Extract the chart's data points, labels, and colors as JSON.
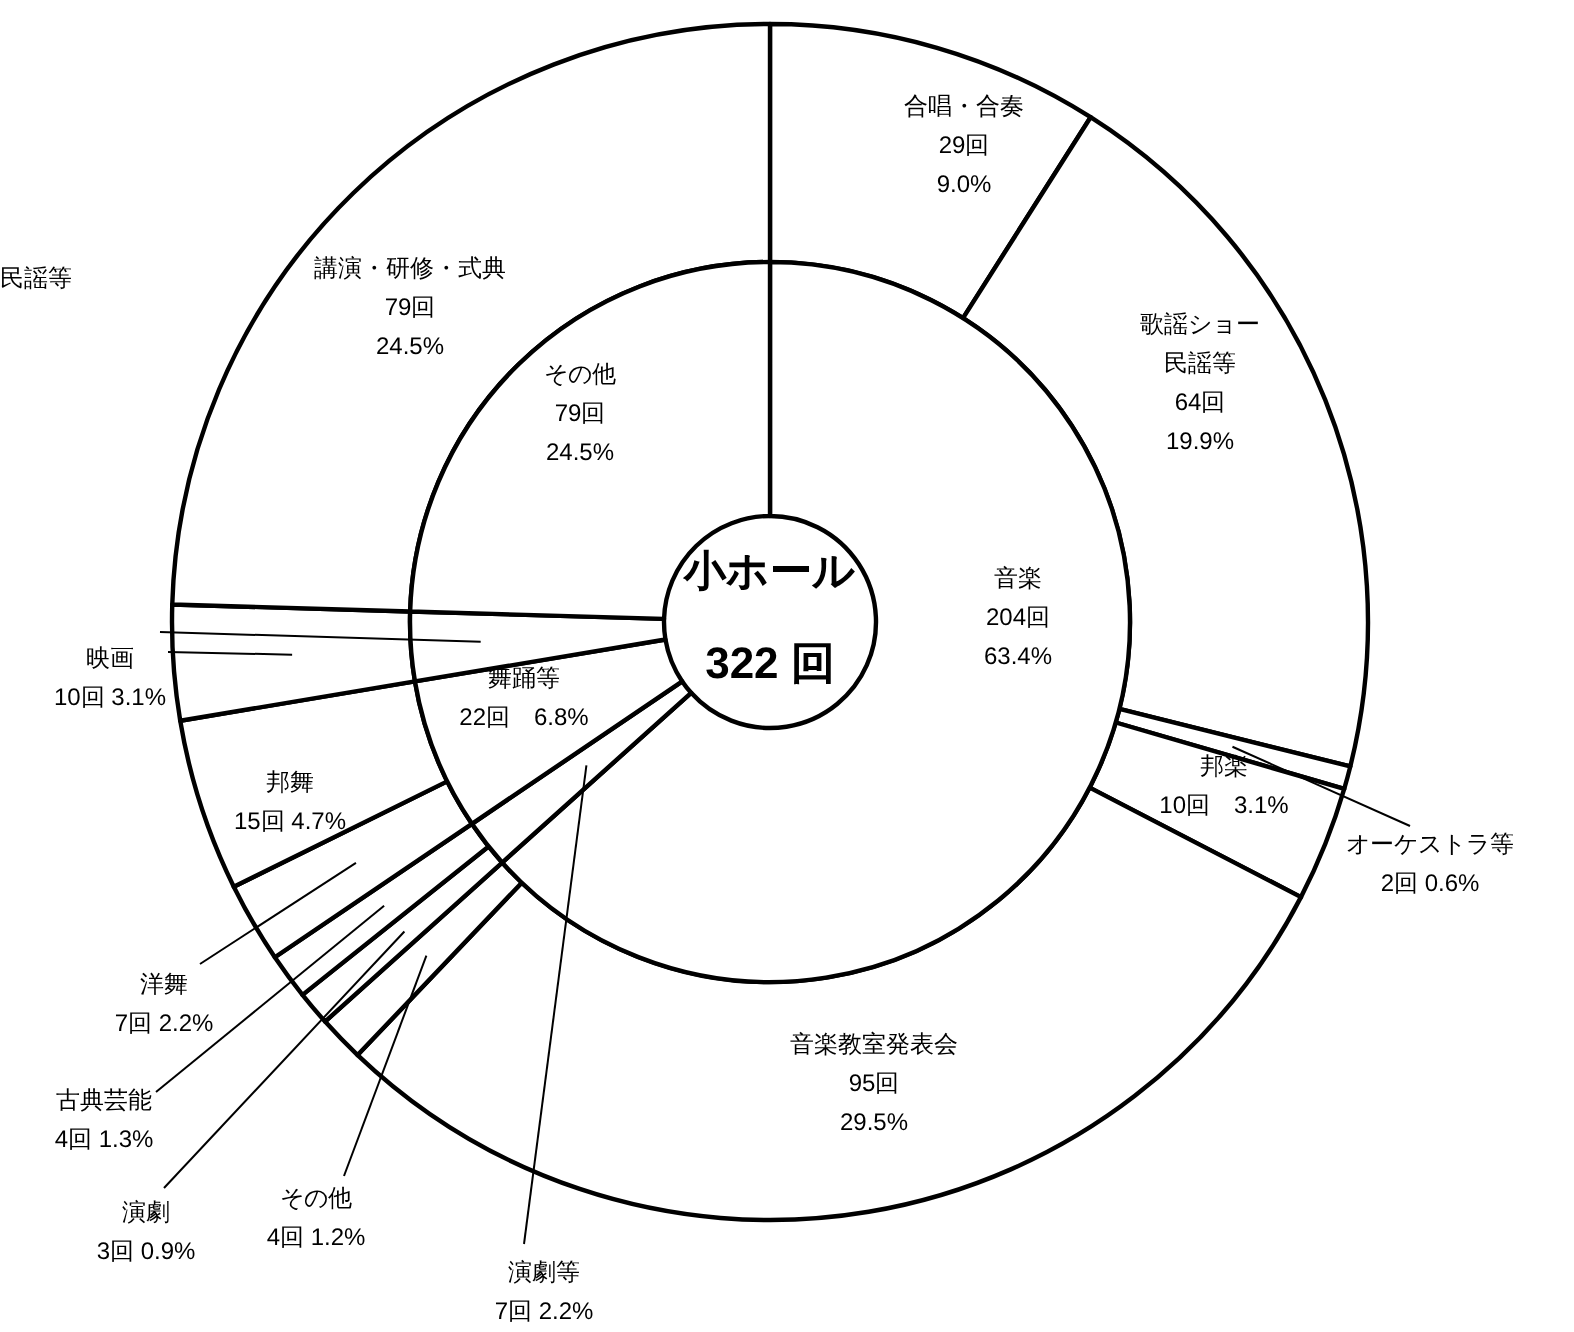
{
  "chart_data": [
    {
      "type": "donut",
      "title": "小ホール",
      "subtitle": "322 回",
      "categories": [
        "音楽",
        "演劇等",
        "舞踊等",
        null,
        "その他"
      ],
      "values": [
        204,
        7,
        22,
        10,
        79
      ],
      "colors": [
        "#ffffff",
        "#ffffff",
        "#ffffff",
        "#ffffff",
        "#ffffff"
      ],
      "value_labels": [
        "204回 63.4%",
        "7回 2.2%",
        "22回　6.8%",
        null,
        "79回 24.5%"
      ]
    },
    {
      "type": "donut",
      "categories": [
        "合唱・合奏",
        "歌謡ショー民謡等",
        "オーケストラ等",
        "邦楽",
        "音楽教室発表会",
        "その他",
        "演劇",
        "古典芸能",
        "洋舞",
        "邦舞",
        "映画",
        "講演・研修・式典"
      ],
      "values": [
        29,
        64,
        2,
        10,
        95,
        4,
        3,
        4,
        7,
        15,
        10,
        79
      ],
      "colors": [
        "#ffffff",
        "#ffffff",
        "#ffffff",
        "#ffffff",
        "#ffffff",
        "#ffffff",
        "#ffffff",
        "#ffffff",
        "#ffffff",
        "#ffffff",
        "#ffffff",
        "#ffffff"
      ],
      "value_labels": [
        "29回 9.0%",
        "64回 19.9%",
        "2回 0.6%",
        "10回　3.1%",
        "95回 29.5%",
        "4回 1.2%",
        "3回 0.9%",
        "4回 1.3%",
        "7回 2.2%",
        "15回 4.7%",
        "10回 3.1%",
        "79回 24.5%"
      ],
      "annotations": [
        "民謡等"
      ]
    }
  ]
}
